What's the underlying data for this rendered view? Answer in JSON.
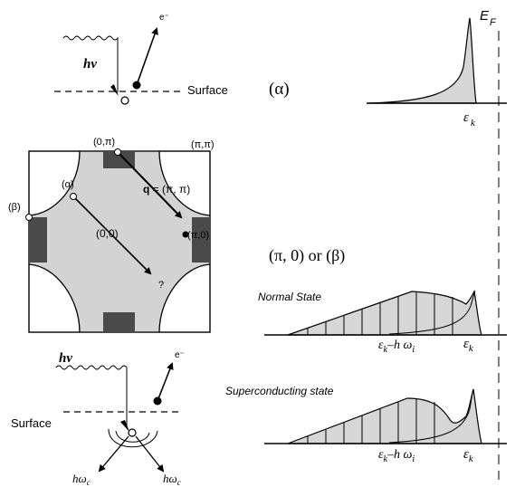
{
  "photon_top": {
    "photon": "hν",
    "electron": "e⁻",
    "surface": "Surface"
  },
  "panel_alpha": {
    "label": "(α)",
    "fermi": "E",
    "fermi_sub": "F",
    "peak": "ε",
    "peak_sub": "k"
  },
  "brillouin": {
    "corner_0pi": "(0,π)",
    "corner_pipi": "(π,π)",
    "alpha": "(α)",
    "beta": "(β)",
    "center": "(0,0)",
    "pi0": "(π,0)",
    "q_bold": "q",
    "q_rest": " = (π, π)",
    "question": "?"
  },
  "panel_beta": {
    "label": "(π, 0) or (β)"
  },
  "normal_state": {
    "title": "Normal State",
    "mode_base": "ε",
    "mode_sub": "k",
    "mode_rest": "–h ω",
    "mode_i": "i",
    "peak": "ε",
    "peak_sub": "k"
  },
  "superconducting_state": {
    "title": "Superconducting state",
    "mode_base": "ε",
    "mode_sub": "k",
    "mode_rest": "–h ω",
    "mode_i": "i",
    "peak": "ε",
    "peak_sub": "k"
  },
  "photon_bottom": {
    "photon": "hν",
    "electron": "e⁻",
    "surface": "Surface",
    "phonon_left": "hω",
    "phonon_left_sub": "c",
    "phonon_right": "hω",
    "phonon_right_sub": "c"
  }
}
